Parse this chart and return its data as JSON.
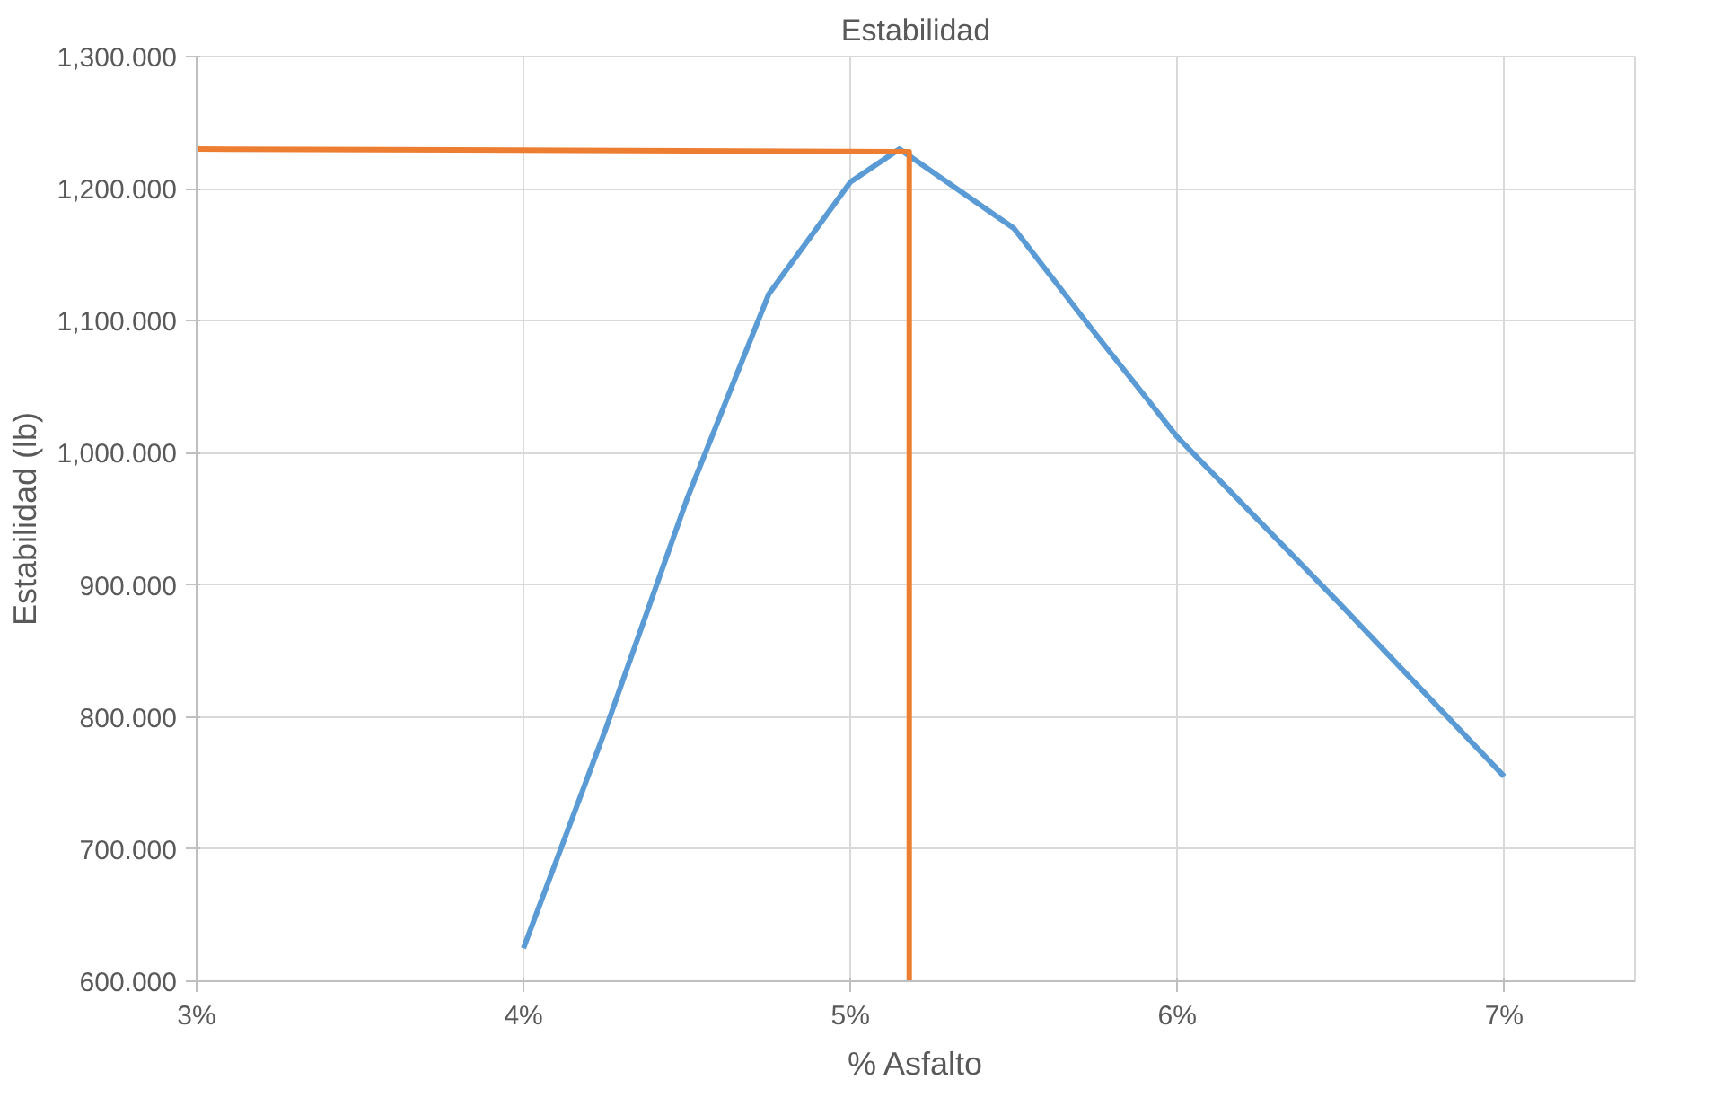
{
  "chart_data": {
    "type": "line",
    "title": "Estabilidad",
    "xlabel": "% Asfalto",
    "ylabel": "Estabilidad (lb)",
    "xlim": [
      3,
      7.4
    ],
    "xticks": [
      {
        "value": 3,
        "label": "3%"
      },
      {
        "value": 4,
        "label": "4%"
      },
      {
        "value": 5,
        "label": "5%"
      },
      {
        "value": 6,
        "label": "6%"
      },
      {
        "value": 7,
        "label": "7%"
      }
    ],
    "ylim": [
      600,
      1300
    ],
    "yticks": [
      {
        "value": 600,
        "label": "600.000"
      },
      {
        "value": 700,
        "label": "700.000"
      },
      {
        "value": 800,
        "label": "800.000"
      },
      {
        "value": 900,
        "label": "900.000"
      },
      {
        "value": 1000,
        "label": "1,000.000"
      },
      {
        "value": 1100,
        "label": "1,100.000"
      },
      {
        "value": 1200,
        "label": "1,200.000"
      },
      {
        "value": 1300,
        "label": "1,300.000"
      }
    ],
    "grid": true,
    "marker": "none",
    "line_style": "solid",
    "series": [
      {
        "color": "#5b9bd5",
        "x": [
          4.0,
          4.25,
          4.5,
          4.75,
          5.0,
          5.15,
          5.5,
          5.75,
          6.0,
          6.5,
          7.0
        ],
        "values": [
          625,
          790,
          965,
          1120,
          1205,
          1230,
          1170,
          1090,
          1012,
          885,
          755
        ]
      },
      {
        "color": "#ed7d31",
        "x": [
          3.0,
          5.15,
          5.18,
          5.18
        ],
        "values": [
          1230,
          1228,
          1228,
          600
        ]
      }
    ]
  }
}
